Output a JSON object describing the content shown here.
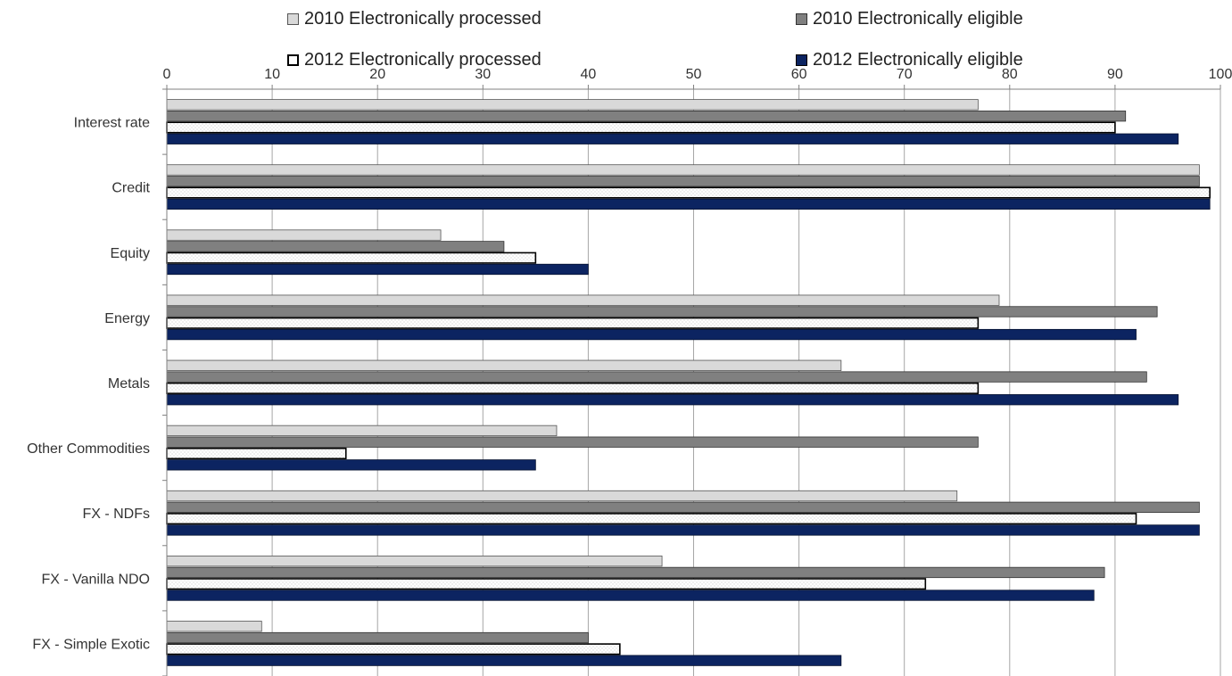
{
  "legend": [
    {
      "label": "2010 Electronically processed"
    },
    {
      "label": "2010 Electronically eligible"
    },
    {
      "label": "2012 Electronically processed"
    },
    {
      "label": "2012 Electronically eligible"
    }
  ],
  "chart_data": {
    "type": "bar",
    "orientation": "horizontal",
    "title": "",
    "xlabel": "",
    "ylabel": "",
    "xlim": [
      0,
      100
    ],
    "x_ticks": [
      0,
      10,
      20,
      30,
      40,
      50,
      60,
      70,
      80,
      90,
      100
    ],
    "x_axis_position": "top",
    "grid": true,
    "legend_position": "top",
    "categories": [
      "Interest rate",
      "Credit",
      "Equity",
      "Energy",
      "Metals",
      "Other Commodities",
      "FX - NDFs",
      "FX - Vanilla NDO",
      "FX - Simple Exotic"
    ],
    "series": [
      {
        "name": "2010 Electronically processed",
        "color": "#d9d9d9",
        "values": [
          77,
          98,
          26,
          79,
          64,
          37,
          75,
          47,
          9
        ]
      },
      {
        "name": "2010 Electronically eligible",
        "color": "#808080",
        "values": [
          91,
          98,
          32,
          94,
          93,
          77,
          98,
          89,
          40
        ]
      },
      {
        "name": "2012 Electronically processed",
        "color": "#ffffff",
        "values": [
          90,
          99,
          35,
          77,
          77,
          17,
          92,
          72,
          43
        ]
      },
      {
        "name": "2012 Electronically eligible",
        "color": "#0c2461",
        "values": [
          96,
          99,
          40,
          92,
          96,
          35,
          98,
          88,
          64
        ]
      }
    ]
  }
}
